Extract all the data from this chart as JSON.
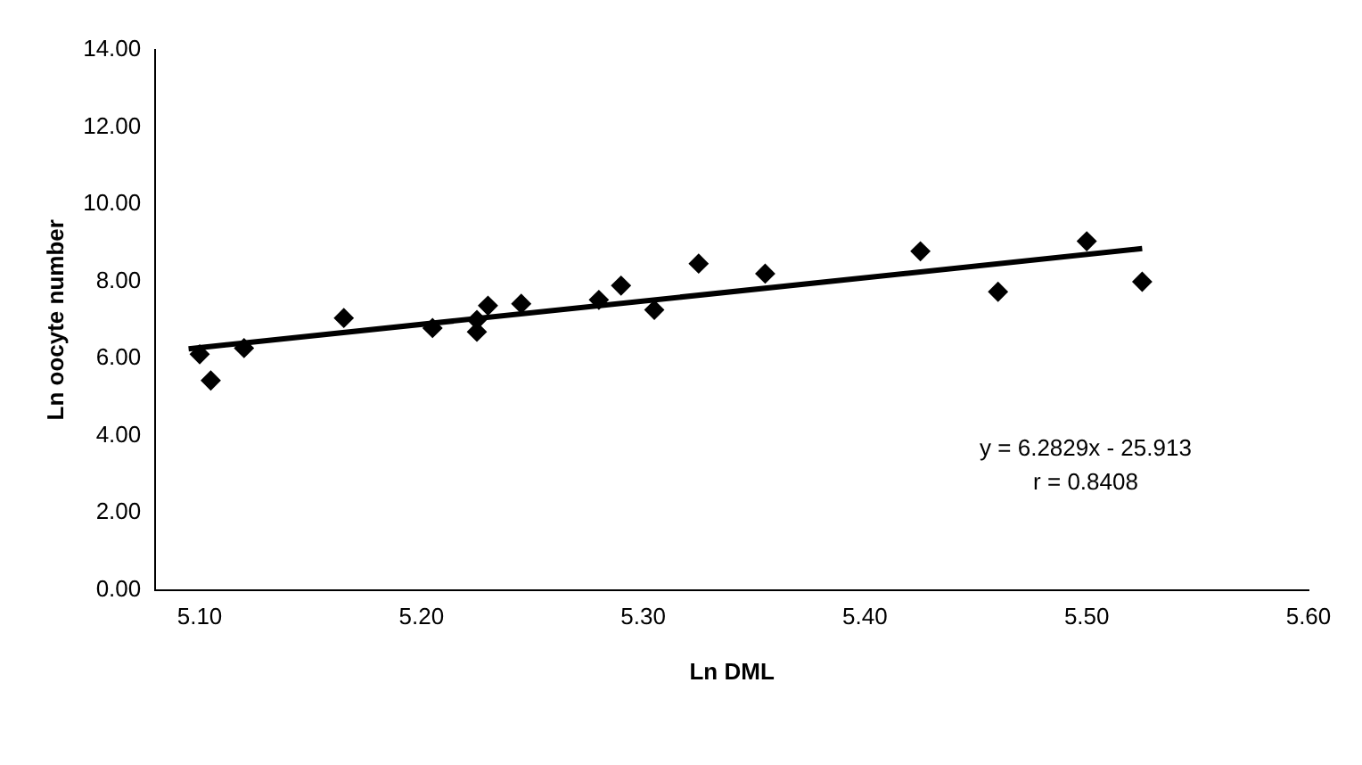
{
  "chart_data": {
    "type": "scatter",
    "xlabel": "Ln DML",
    "ylabel": "Ln oocyte number",
    "marker": "diamond",
    "grid": false,
    "legend": false,
    "xlim": [
      5.08,
      5.6
    ],
    "xticks": [
      {
        "value": 5.1,
        "label": "5.10"
      },
      {
        "value": 5.2,
        "label": "5.20"
      },
      {
        "value": 5.3,
        "label": "5.30"
      },
      {
        "value": 5.4,
        "label": "5.40"
      },
      {
        "value": 5.5,
        "label": "5.50"
      },
      {
        "value": 5.6,
        "label": "5.60"
      }
    ],
    "ylim": [
      0,
      14
    ],
    "yticks": [
      {
        "value": 0,
        "label": "0.00"
      },
      {
        "value": 2,
        "label": "2.00"
      },
      {
        "value": 4,
        "label": "4.00"
      },
      {
        "value": 6,
        "label": "6.00"
      },
      {
        "value": 8,
        "label": "8.00"
      },
      {
        "value": 10,
        "label": "10.00"
      },
      {
        "value": 12,
        "label": "12.00"
      },
      {
        "value": 14,
        "label": "14.00"
      }
    ],
    "series": [
      {
        "color": "#000000",
        "x": [
          5.1,
          5.105,
          5.12,
          5.165,
          5.205,
          5.225,
          5.225,
          5.23,
          5.245,
          5.28,
          5.29,
          5.305,
          5.325,
          5.355,
          5.425,
          5.46,
          5.5,
          5.525
        ],
        "values": [
          6.11,
          5.43,
          6.27,
          7.05,
          6.79,
          7.0,
          6.69,
          7.37,
          7.42,
          7.52,
          7.89,
          7.26,
          8.46,
          8.2,
          8.78,
          7.73,
          9.04,
          7.99
        ]
      },
      {
        "type": "line",
        "color": "#000000",
        "marker": "none",
        "x": [
          5.095,
          5.525
        ],
        "values": [
          6.25,
          8.85
        ]
      }
    ],
    "annotations": [
      "y = 6.2829x - 25.913",
      "r = 0.8408"
    ]
  }
}
